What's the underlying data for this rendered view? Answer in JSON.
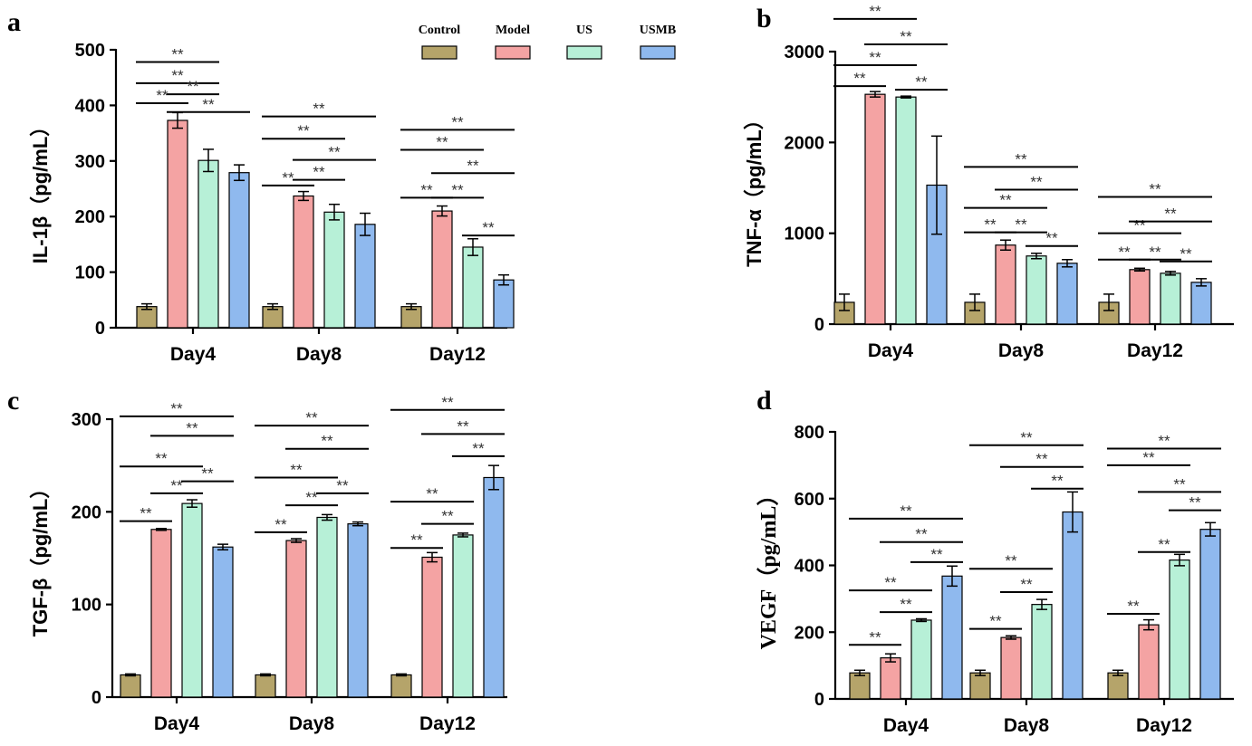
{
  "legend": {
    "entries": [
      {
        "name": "Control",
        "color": "#b5a46a"
      },
      {
        "name": "Model",
        "color": "#f4a3a3"
      },
      {
        "name": "US",
        "color": "#b7f0d7"
      },
      {
        "name": "USMB",
        "color": "#8fb9ee"
      }
    ]
  },
  "chart_data": [
    {
      "type": "bar",
      "panel": "a",
      "ylabel": "IL-1β（pg/mL）",
      "categories": [
        "Day4",
        "Day8",
        "Day12"
      ],
      "ylim": [
        0,
        500
      ],
      "yticks": [
        0,
        100,
        200,
        300,
        400,
        500
      ],
      "series": [
        {
          "name": "Control",
          "values": [
            38,
            38,
            38
          ],
          "errors": [
            5,
            5,
            5
          ]
        },
        {
          "name": "Model",
          "values": [
            373,
            237,
            210
          ],
          "errors": [
            14,
            8,
            9
          ]
        },
        {
          "name": "US",
          "values": [
            301,
            208,
            145
          ],
          "errors": [
            20,
            14,
            15
          ]
        },
        {
          "name": "USMB",
          "values": [
            279,
            186,
            86
          ],
          "errors": [
            14,
            20,
            9
          ]
        }
      ],
      "significance": [
        {
          "label": "**",
          "group": 0,
          "from": 0,
          "to": 2,
          "y": 478
        },
        {
          "label": "**",
          "group": 0,
          "from": 0,
          "to": 2,
          "y": 440
        },
        {
          "label": "**",
          "group": 0,
          "from": 0,
          "to": 1,
          "y": 404
        },
        {
          "label": "**",
          "group": 0,
          "from": 1,
          "to": 2,
          "y": 420
        },
        {
          "label": "**",
          "group": 0,
          "from": 1,
          "to": 3,
          "y": 388
        },
        {
          "label": "**",
          "group": 1,
          "from": 0,
          "to": 3,
          "y": 380
        },
        {
          "label": "**",
          "group": 1,
          "from": 0,
          "to": 2,
          "y": 340
        },
        {
          "label": "**",
          "group": 1,
          "from": 1,
          "to": 3,
          "y": 302
        },
        {
          "label": "**",
          "group": 1,
          "from": 0,
          "to": 1,
          "y": 256
        },
        {
          "label": "**",
          "group": 1,
          "from": 1,
          "to": 2,
          "y": 266
        },
        {
          "label": "**",
          "group": 2,
          "from": 0,
          "to": 3,
          "y": 356
        },
        {
          "label": "**",
          "group": 2,
          "from": 0,
          "to": 2,
          "y": 320
        },
        {
          "label": "**",
          "group": 2,
          "from": 1,
          "to": 3,
          "y": 278
        },
        {
          "label": "**",
          "group": 2,
          "from": 0,
          "to": 1,
          "y": 234
        },
        {
          "label": "**",
          "group": 2,
          "from": 1,
          "to": 2,
          "y": 234
        },
        {
          "label": "**",
          "group": 2,
          "from": 2,
          "to": 3,
          "y": 166
        }
      ]
    },
    {
      "type": "bar",
      "panel": "b",
      "ylabel": "TNF-α（pg/mL）",
      "categories": [
        "Day4",
        "Day8",
        "Day12"
      ],
      "ylim": [
        0,
        3000
      ],
      "yticks": [
        0,
        1000,
        2000,
        3000
      ],
      "series": [
        {
          "name": "Control",
          "values": [
            240,
            240,
            240
          ],
          "errors": [
            90,
            90,
            90
          ]
        },
        {
          "name": "Model",
          "values": [
            2530,
            870,
            600
          ],
          "errors": [
            30,
            55,
            15
          ]
        },
        {
          "name": "US",
          "values": [
            2500,
            750,
            560
          ],
          "errors": [
            10,
            30,
            20
          ]
        },
        {
          "name": "USMB",
          "values": [
            1530,
            670,
            460
          ],
          "errors": [
            540,
            40,
            40
          ]
        }
      ],
      "significance": [
        {
          "label": "**",
          "group": 0,
          "from": 0,
          "to": 2,
          "y": 3360
        },
        {
          "label": "**",
          "group": 0,
          "from": 1,
          "to": 3,
          "y": 3080
        },
        {
          "label": "**",
          "group": 0,
          "from": 0,
          "to": 2,
          "y": 2850
        },
        {
          "label": "**",
          "group": 0,
          "from": 0,
          "to": 1,
          "y": 2620
        },
        {
          "label": "**",
          "group": 0,
          "from": 2,
          "to": 3,
          "y": 2580
        },
        {
          "label": "**",
          "group": 1,
          "from": 0,
          "to": 3,
          "y": 1730
        },
        {
          "label": "**",
          "group": 1,
          "from": 1,
          "to": 3,
          "y": 1480
        },
        {
          "label": "**",
          "group": 1,
          "from": 0,
          "to": 2,
          "y": 1280
        },
        {
          "label": "**",
          "group": 1,
          "from": 0,
          "to": 1,
          "y": 1010
        },
        {
          "label": "**",
          "group": 1,
          "from": 1,
          "to": 2,
          "y": 1010
        },
        {
          "label": "**",
          "group": 1,
          "from": 2,
          "to": 3,
          "y": 860
        },
        {
          "label": "**",
          "group": 2,
          "from": 0,
          "to": 3,
          "y": 1400
        },
        {
          "label": "**",
          "group": 2,
          "from": 0,
          "to": 2,
          "y": 1000
        },
        {
          "label": "**",
          "group": 2,
          "from": 1,
          "to": 3,
          "y": 1130
        },
        {
          "label": "**",
          "group": 2,
          "from": 0,
          "to": 1,
          "y": 710
        },
        {
          "label": "**",
          "group": 2,
          "from": 1,
          "to": 2,
          "y": 710
        },
        {
          "label": "**",
          "group": 2,
          "from": 2,
          "to": 3,
          "y": 690
        }
      ]
    },
    {
      "type": "bar",
      "panel": "c",
      "ylabel": "TGF-β（pg/mL）",
      "categories": [
        "Day4",
        "Day8",
        "Day12"
      ],
      "ylim": [
        0,
        300
      ],
      "yticks": [
        0,
        100,
        200,
        300
      ],
      "series": [
        {
          "name": "Control",
          "values": [
            24,
            24,
            24
          ],
          "errors": [
            1,
            1,
            1
          ]
        },
        {
          "name": "Model",
          "values": [
            181,
            169,
            151
          ],
          "errors": [
            1,
            2,
            5
          ]
        },
        {
          "name": "US",
          "values": [
            209,
            194,
            175
          ],
          "errors": [
            4,
            3,
            2
          ]
        },
        {
          "name": "USMB",
          "values": [
            162,
            187,
            237
          ],
          "errors": [
            3,
            2,
            13
          ]
        }
      ],
      "significance": [
        {
          "label": "**",
          "group": 0,
          "from": 0,
          "to": 3,
          "y": 303
        },
        {
          "label": "**",
          "group": 0,
          "from": 1,
          "to": 3,
          "y": 282
        },
        {
          "label": "**",
          "group": 0,
          "from": 0,
          "to": 2,
          "y": 249
        },
        {
          "label": "**",
          "group": 0,
          "from": 1,
          "to": 2,
          "y": 220
        },
        {
          "label": "**",
          "group": 0,
          "from": 2,
          "to": 3,
          "y": 233
        },
        {
          "label": "**",
          "group": 0,
          "from": 0,
          "to": 1,
          "y": 190
        },
        {
          "label": "**",
          "group": 1,
          "from": 0,
          "to": 3,
          "y": 293
        },
        {
          "label": "**",
          "group": 1,
          "from": 1,
          "to": 3,
          "y": 268
        },
        {
          "label": "**",
          "group": 1,
          "from": 0,
          "to": 2,
          "y": 237
        },
        {
          "label": "**",
          "group": 1,
          "from": 1,
          "to": 2,
          "y": 207
        },
        {
          "label": "**",
          "group": 1,
          "from": 2,
          "to": 3,
          "y": 220
        },
        {
          "label": "**",
          "group": 1,
          "from": 0,
          "to": 1,
          "y": 178
        },
        {
          "label": "**",
          "group": 2,
          "from": 0,
          "to": 3,
          "y": 310
        },
        {
          "label": "**",
          "group": 2,
          "from": 1,
          "to": 3,
          "y": 284
        },
        {
          "label": "**",
          "group": 2,
          "from": 2,
          "to": 3,
          "y": 260
        },
        {
          "label": "**",
          "group": 2,
          "from": 0,
          "to": 2,
          "y": 211
        },
        {
          "label": "**",
          "group": 2,
          "from": 1,
          "to": 2,
          "y": 187
        },
        {
          "label": "**",
          "group": 2,
          "from": 0,
          "to": 1,
          "y": 161
        }
      ]
    },
    {
      "type": "bar",
      "panel": "d",
      "ylabel": "VEGF（pg/mL）",
      "categories": [
        "Day4",
        "Day8",
        "Day12"
      ],
      "ylim": [
        0,
        800
      ],
      "yticks": [
        0,
        200,
        400,
        600,
        800
      ],
      "series": [
        {
          "name": "Control",
          "values": [
            78,
            78,
            78
          ],
          "errors": [
            8,
            8,
            8
          ]
        },
        {
          "name": "Model",
          "values": [
            123,
            184,
            222
          ],
          "errors": [
            12,
            5,
            15
          ]
        },
        {
          "name": "US",
          "values": [
            236,
            283,
            416
          ],
          "errors": [
            4,
            15,
            17
          ]
        },
        {
          "name": "USMB",
          "values": [
            368,
            560,
            508
          ],
          "errors": [
            30,
            60,
            20
          ]
        }
      ],
      "significance": [
        {
          "label": "**",
          "group": 0,
          "from": 0,
          "to": 3,
          "y": 540
        },
        {
          "label": "**",
          "group": 0,
          "from": 1,
          "to": 3,
          "y": 470
        },
        {
          "label": "**",
          "group": 0,
          "from": 2,
          "to": 3,
          "y": 410
        },
        {
          "label": "**",
          "group": 0,
          "from": 0,
          "to": 2,
          "y": 325
        },
        {
          "label": "**",
          "group": 0,
          "from": 1,
          "to": 2,
          "y": 260
        },
        {
          "label": "**",
          "group": 0,
          "from": 0,
          "to": 1,
          "y": 162
        },
        {
          "label": "**",
          "group": 1,
          "from": 0,
          "to": 3,
          "y": 760
        },
        {
          "label": "**",
          "group": 1,
          "from": 1,
          "to": 3,
          "y": 695
        },
        {
          "label": "**",
          "group": 1,
          "from": 2,
          "to": 3,
          "y": 630
        },
        {
          "label": "**",
          "group": 1,
          "from": 0,
          "to": 2,
          "y": 390
        },
        {
          "label": "**",
          "group": 1,
          "from": 1,
          "to": 2,
          "y": 320
        },
        {
          "label": "**",
          "group": 1,
          "from": 0,
          "to": 1,
          "y": 210
        },
        {
          "label": "**",
          "group": 2,
          "from": 0,
          "to": 3,
          "y": 750
        },
        {
          "label": "**",
          "group": 2,
          "from": 0,
          "to": 2,
          "y": 700
        },
        {
          "label": "**",
          "group": 2,
          "from": 1,
          "to": 3,
          "y": 620
        },
        {
          "label": "**",
          "group": 2,
          "from": 2,
          "to": 3,
          "y": 565
        },
        {
          "label": "**",
          "group": 2,
          "from": 1,
          "to": 2,
          "y": 440
        },
        {
          "label": "**",
          "group": 2,
          "from": 0,
          "to": 1,
          "y": 255
        }
      ]
    }
  ]
}
